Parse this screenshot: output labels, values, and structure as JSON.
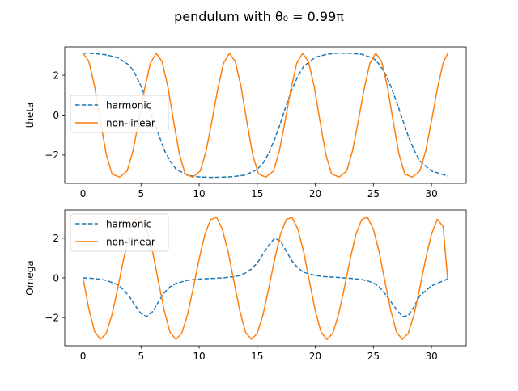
{
  "figure": {
    "suptitle": "pendulum with θ₀ = 0.99π"
  },
  "chart_data": [
    {
      "type": "line",
      "title": "",
      "xlabel": "",
      "ylabel": "theta",
      "xlim": [
        -1.57,
        32.99
      ],
      "ylim": [
        -3.42,
        3.42
      ],
      "xticks": [
        0,
        5,
        10,
        15,
        20,
        25,
        30
      ],
      "yticks": [
        -2,
        0,
        2
      ],
      "grid": false,
      "legend": {
        "placement": "center-left",
        "entries": [
          "harmonic",
          "non-linear"
        ]
      },
      "series": [
        {
          "name": "harmonic",
          "color": "#1f77b4",
          "style": "dashed",
          "x": [
            0,
            1,
            2,
            3,
            4,
            4.5,
            5,
            5.5,
            6,
            6.5,
            7,
            7.5,
            8,
            9,
            10,
            11,
            12,
            13,
            14,
            15,
            15.5,
            16,
            16.5,
            17,
            17.5,
            18,
            18.5,
            19,
            20,
            21,
            22,
            23,
            24,
            25,
            25.5,
            26,
            26.5,
            27,
            27.5,
            28,
            28.5,
            29,
            30,
            31,
            31.4
          ],
          "y": [
            3.11,
            3.09,
            3.02,
            2.88,
            2.5,
            2.05,
            1.45,
            0.7,
            -0.15,
            -0.95,
            -1.75,
            -2.3,
            -2.7,
            -3.02,
            -3.1,
            -3.12,
            -3.11,
            -3.08,
            -3.0,
            -2.72,
            -2.4,
            -1.9,
            -1.2,
            -0.4,
            0.5,
            1.3,
            1.95,
            2.45,
            2.9,
            3.05,
            3.11,
            3.1,
            3.05,
            2.85,
            2.55,
            2.1,
            1.45,
            0.65,
            -0.2,
            -1.05,
            -1.75,
            -2.3,
            -2.8,
            -2.98,
            -3.05
          ]
        },
        {
          "name": "non-linear",
          "color": "#ff7f0e",
          "style": "solid",
          "x": [
            0,
            0.5,
            1,
            1.5,
            2,
            2.5,
            3.15,
            3.8,
            4.3,
            4.8,
            5.3,
            5.8,
            6.3,
            6.8,
            7.3,
            7.8,
            8.3,
            8.8,
            9.45,
            10.1,
            10.6,
            11.1,
            11.6,
            12.1,
            12.6,
            13.1,
            13.6,
            14.1,
            14.6,
            15.1,
            15.75,
            16.4,
            16.9,
            17.4,
            17.9,
            18.4,
            18.9,
            19.4,
            19.9,
            20.4,
            20.9,
            21.4,
            22.05,
            22.7,
            23.2,
            23.7,
            24.2,
            24.7,
            25.2,
            25.7,
            26.2,
            26.7,
            27.2,
            27.7,
            28.35,
            29.0,
            29.5,
            30.0,
            30.5,
            31.0,
            31.4
          ],
          "y": [
            3.11,
            2.7,
            1.45,
            -0.3,
            -1.95,
            -2.95,
            -3.11,
            -2.8,
            -1.8,
            -0.3,
            1.3,
            2.6,
            3.1,
            2.7,
            1.45,
            -0.3,
            -1.95,
            -2.95,
            -3.11,
            -2.8,
            -1.8,
            -0.3,
            1.3,
            2.6,
            3.1,
            2.7,
            1.45,
            -0.3,
            -1.95,
            -2.95,
            -3.11,
            -2.8,
            -1.8,
            -0.3,
            1.3,
            2.6,
            3.1,
            2.7,
            1.45,
            -0.3,
            -1.95,
            -2.95,
            -3.11,
            -2.8,
            -1.8,
            -0.3,
            1.3,
            2.6,
            3.1,
            2.7,
            1.45,
            -0.3,
            -1.95,
            -2.95,
            -3.11,
            -2.8,
            -1.8,
            -0.3,
            1.3,
            2.6,
            3.1
          ]
        }
      ]
    },
    {
      "type": "line",
      "title": "",
      "xlabel": "",
      "ylabel": "Omega",
      "xlim": [
        -1.57,
        32.99
      ],
      "ylim": [
        -3.42,
        3.42
      ],
      "xticks": [
        0,
        5,
        10,
        15,
        20,
        25,
        30
      ],
      "yticks": [
        -2,
        0,
        2
      ],
      "grid": false,
      "legend": {
        "placement": "upper-left",
        "entries": [
          "harmonic",
          "non-linear"
        ]
      },
      "series": [
        {
          "name": "harmonic",
          "color": "#1f77b4",
          "style": "dashed",
          "x": [
            0,
            1,
            2,
            3,
            3.5,
            4,
            4.5,
            5,
            5.5,
            6,
            6.5,
            7,
            7.5,
            8,
            9,
            10,
            11,
            12,
            13,
            13.5,
            14,
            14.5,
            15,
            15.5,
            16,
            16.5,
            17,
            17.5,
            18,
            18.5,
            19,
            20,
            21,
            22,
            23,
            24,
            24.5,
            25,
            25.5,
            26,
            26.5,
            27,
            27.5,
            28,
            28.5,
            29,
            30,
            31,
            31.4
          ],
          "y": [
            0.0,
            -0.03,
            -0.12,
            -0.35,
            -0.6,
            -0.95,
            -1.4,
            -1.8,
            -1.95,
            -1.7,
            -1.2,
            -0.75,
            -0.45,
            -0.28,
            -0.12,
            -0.06,
            -0.03,
            0.0,
            0.06,
            0.12,
            0.25,
            0.45,
            0.75,
            1.2,
            1.65,
            2.0,
            1.85,
            1.35,
            0.85,
            0.5,
            0.28,
            0.12,
            0.05,
            0.02,
            -0.02,
            -0.08,
            -0.15,
            -0.25,
            -0.45,
            -0.8,
            -1.2,
            -1.6,
            -1.95,
            -1.9,
            -1.45,
            -0.9,
            -0.4,
            -0.15,
            -0.05
          ]
        },
        {
          "name": "non-linear",
          "color": "#ff7f0e",
          "style": "solid",
          "x": [
            0,
            0.5,
            1.0,
            1.5,
            2.0,
            2.5,
            3.0,
            3.5,
            4.0,
            4.5,
            5.0,
            5.5,
            6.0,
            6.5,
            7.0,
            7.5,
            8.0,
            8.5,
            9.0,
            9.5,
            10.0,
            10.5,
            11.0,
            11.5,
            12.0,
            12.5,
            13.0,
            13.5,
            14.0,
            14.5,
            15.0,
            15.5,
            16.0,
            16.5,
            17.0,
            17.5,
            18.0,
            18.5,
            19.0,
            19.5,
            20.0,
            20.5,
            21.0,
            21.5,
            22.0,
            22.5,
            23.0,
            23.5,
            24.0,
            24.5,
            25.0,
            25.5,
            26.0,
            26.5,
            27.0,
            27.5,
            28.0,
            28.5,
            29.0,
            29.5,
            30.0,
            30.5,
            31.0,
            31.4
          ],
          "y": [
            0.0,
            -1.55,
            -2.7,
            -3.1,
            -2.8,
            -1.85,
            -0.5,
            0.95,
            2.2,
            2.95,
            3.05,
            2.45,
            1.3,
            -0.2,
            -1.65,
            -2.75,
            -3.1,
            -2.8,
            -1.85,
            -0.5,
            0.95,
            2.2,
            2.95,
            3.05,
            2.45,
            1.3,
            -0.2,
            -1.65,
            -2.75,
            -3.1,
            -2.8,
            -1.85,
            -0.5,
            0.95,
            2.2,
            2.95,
            3.05,
            2.45,
            1.3,
            -0.2,
            -1.65,
            -2.75,
            -3.1,
            -2.8,
            -1.85,
            -0.5,
            0.95,
            2.2,
            2.95,
            3.05,
            2.45,
            1.3,
            -0.2,
            -1.65,
            -2.75,
            -3.1,
            -2.8,
            -1.85,
            -0.5,
            0.95,
            2.2,
            2.95,
            2.6,
            -0.1
          ]
        }
      ]
    }
  ]
}
